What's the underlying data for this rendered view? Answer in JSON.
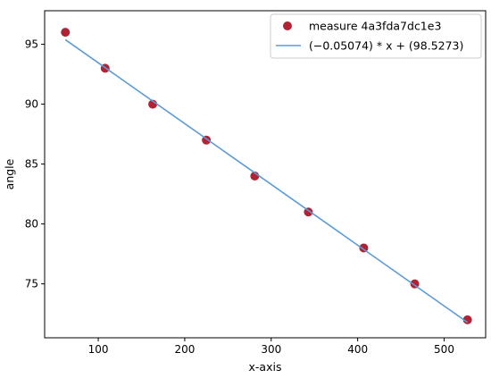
{
  "chart_data": {
    "type": "scatter",
    "xlabel": "x-axis",
    "ylabel": "angle",
    "xlim": [
      38,
      548
    ],
    "ylim": [
      70.5,
      97.8
    ],
    "xticks": [
      100,
      200,
      300,
      400,
      500
    ],
    "yticks": [
      75,
      80,
      85,
      90,
      95
    ],
    "grid": false,
    "legend_position": "top-right",
    "series": [
      {
        "name": "measure 4a3fda7dc1e3",
        "kind": "scatter",
        "color": "#b22234",
        "x": [
          62,
          108,
          163,
          225,
          281,
          343,
          407,
          466,
          527
        ],
        "y": [
          96,
          93,
          90,
          87,
          84,
          81,
          78,
          75,
          72
        ]
      },
      {
        "name": "(−0.05074) * x + (98.5273)",
        "kind": "line",
        "color": "#5b9bd5",
        "slope": -0.05074,
        "intercept": 98.5273,
        "x_range": [
          62,
          527
        ]
      }
    ]
  }
}
